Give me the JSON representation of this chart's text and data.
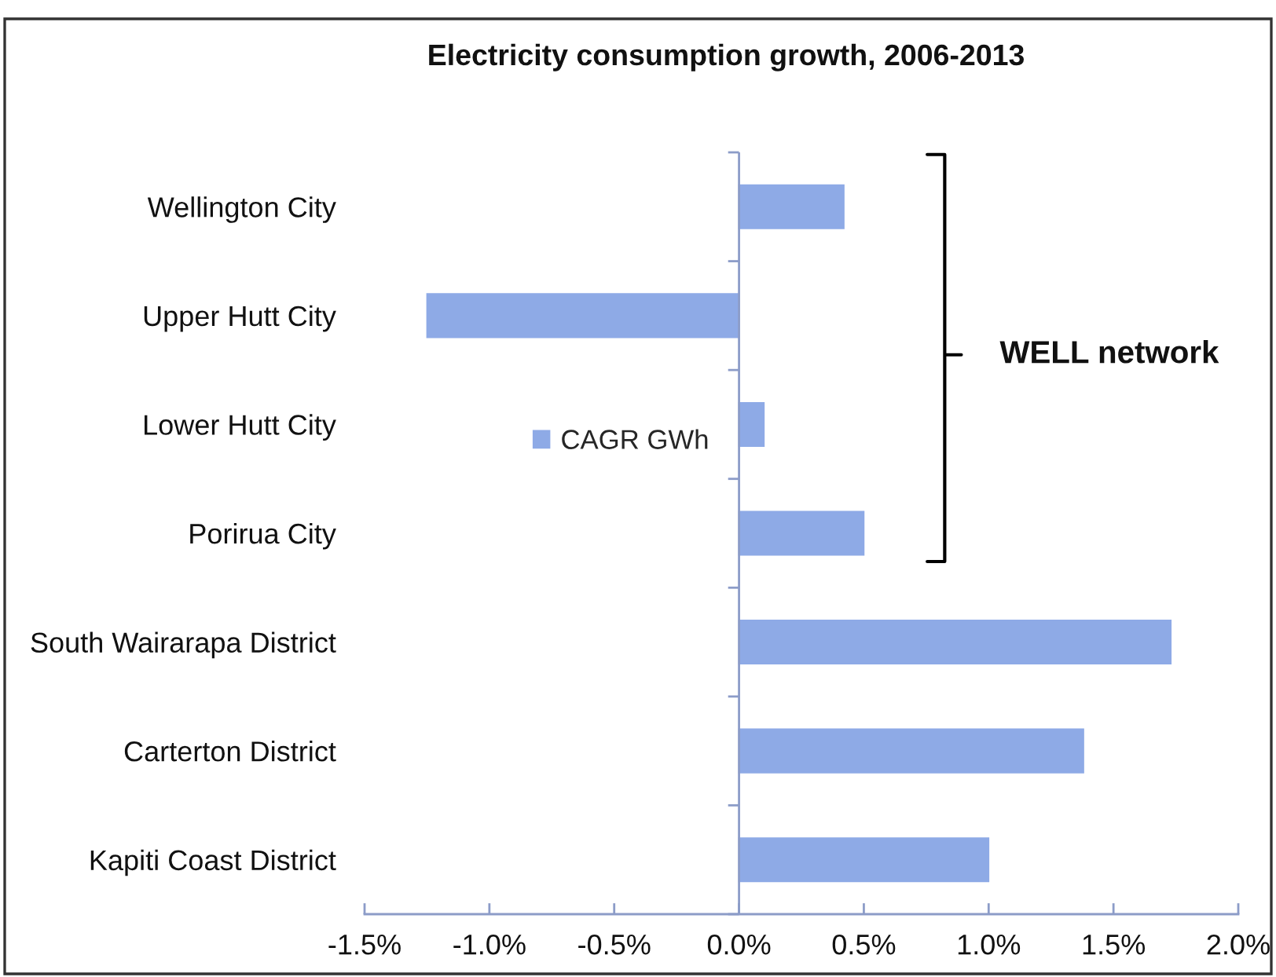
{
  "chart_data": {
    "type": "bar",
    "orientation": "horizontal",
    "title": "Electricity consumption growth, 2006-2013",
    "categories": [
      "Wellington City",
      "Upper Hutt City",
      "Lower Hutt City",
      "Porirua City",
      "South Wairarapa District",
      "Carterton District",
      "Kapiti Coast District"
    ],
    "series": [
      {
        "name": "CAGR GWh",
        "color": "#8eaae6",
        "values": [
          0.42,
          -1.25,
          0.1,
          0.5,
          1.73,
          1.38,
          1.0
        ]
      }
    ],
    "xlim": [
      -1.5,
      2.0
    ],
    "xticks": [
      {
        "value": -1.5,
        "label": "-1.5%"
      },
      {
        "value": -1.0,
        "label": "-1.0%"
      },
      {
        "value": -0.5,
        "label": "-0.5%"
      },
      {
        "value": 0.0,
        "label": "0.0%"
      },
      {
        "value": 0.5,
        "label": "0.5%"
      },
      {
        "value": 1.0,
        "label": "1.0%"
      },
      {
        "value": 1.5,
        "label": "1.5%"
      },
      {
        "value": 2.0,
        "label": "2.0%"
      }
    ],
    "ref_lines": [
      {
        "axis": "x",
        "value": 0,
        "color": "#8c9cc8",
        "line_style": "solid"
      }
    ],
    "legend": "center left",
    "grid": false,
    "annotations": [
      "WELL network"
    ]
  }
}
